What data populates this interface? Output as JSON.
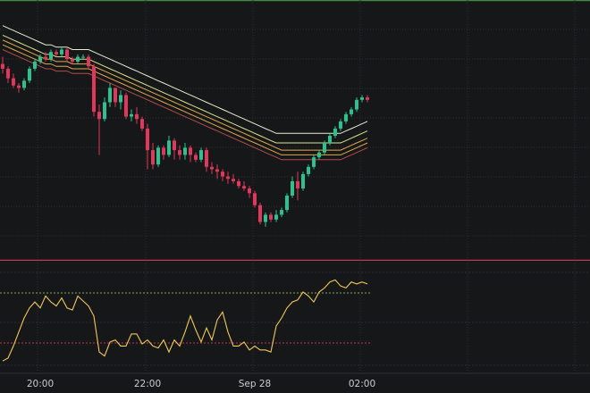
{
  "chart_data": {
    "type": "candlestick",
    "xlabel": "",
    "ylabel": "",
    "x_ticks": [
      {
        "label": "20:00",
        "bar": 5
      },
      {
        "label": "22:00",
        "bar": 25
      },
      {
        "label": "Sep 28",
        "bar": 45
      },
      {
        "label": "02:00",
        "bar": 65
      }
    ],
    "ylim": [
      0,
      100
    ],
    "candles": [
      [
        80,
        83,
        76,
        78
      ],
      [
        78,
        79,
        72,
        74
      ],
      [
        74,
        76,
        70,
        71
      ],
      [
        71,
        72,
        68,
        70
      ],
      [
        70,
        74,
        69,
        73
      ],
      [
        73,
        79,
        72,
        78
      ],
      [
        78,
        82,
        77,
        81
      ],
      [
        81,
        84,
        80,
        83
      ],
      [
        83,
        85,
        81,
        82
      ],
      [
        82,
        86,
        81,
        85
      ],
      [
        85,
        86,
        83,
        84
      ],
      [
        84,
        87,
        83,
        86
      ],
      [
        86,
        87,
        81,
        82
      ],
      [
        82,
        83,
        80,
        81
      ],
      [
        81,
        84,
        80,
        83
      ],
      [
        83,
        84,
        82,
        83
      ],
      [
        83,
        84,
        78,
        79
      ],
      [
        79,
        80,
        58,
        60
      ],
      [
        60,
        63,
        42,
        57
      ],
      [
        57,
        66,
        56,
        64
      ],
      [
        64,
        72,
        62,
        70
      ],
      [
        70,
        70,
        62,
        64
      ],
      [
        64,
        69,
        61,
        67
      ],
      [
        67,
        68,
        57,
        58
      ],
      [
        58,
        61,
        56,
        59
      ],
      [
        59,
        62,
        55,
        57
      ],
      [
        57,
        58,
        52,
        53
      ],
      [
        53,
        55,
        36,
        44
      ],
      [
        44,
        47,
        36,
        38
      ],
      [
        38,
        46,
        37,
        45
      ],
      [
        45,
        46,
        40,
        42
      ],
      [
        42,
        50,
        41,
        48
      ],
      [
        48,
        49,
        40,
        44
      ],
      [
        44,
        46,
        40,
        42
      ],
      [
        42,
        47,
        40,
        45
      ],
      [
        45,
        46,
        39,
        42
      ],
      [
        42,
        43,
        39,
        40
      ],
      [
        40,
        45,
        39,
        44
      ],
      [
        44,
        45,
        35,
        37
      ],
      [
        37,
        39,
        34,
        36
      ],
      [
        36,
        38,
        32,
        35
      ],
      [
        35,
        36,
        31,
        33
      ],
      [
        33,
        35,
        30,
        32
      ],
      [
        32,
        34,
        30,
        31
      ],
      [
        31,
        32,
        28,
        29
      ],
      [
        29,
        31,
        27,
        28
      ],
      [
        28,
        29,
        24,
        26
      ],
      [
        26,
        27,
        20,
        21
      ],
      [
        21,
        22,
        13,
        14
      ],
      [
        14,
        18,
        12,
        17
      ],
      [
        17,
        18,
        14,
        15
      ],
      [
        15,
        19,
        14,
        17
      ],
      [
        17,
        20,
        16,
        19
      ],
      [
        19,
        26,
        18,
        25
      ],
      [
        25,
        33,
        24,
        31
      ],
      [
        31,
        35,
        23,
        28
      ],
      [
        28,
        35,
        27,
        34
      ],
      [
        34,
        38,
        33,
        37
      ],
      [
        37,
        42,
        36,
        41
      ],
      [
        41,
        44,
        40,
        43
      ],
      [
        43,
        48,
        42,
        47
      ],
      [
        47,
        51,
        46,
        50
      ],
      [
        50,
        54,
        49,
        53
      ],
      [
        53,
        57,
        52,
        56
      ],
      [
        56,
        60,
        55,
        59
      ],
      [
        59,
        62,
        58,
        61
      ],
      [
        61,
        66,
        60,
        65
      ],
      [
        65,
        67,
        64,
        66
      ],
      [
        66,
        67,
        64,
        65
      ]
    ],
    "bands": [
      {
        "name": "",
        "color": "#e4efcf",
        "values": [
          96,
          95,
          94,
          93,
          92,
          91,
          90,
          89,
          88,
          88,
          87,
          87,
          87,
          86,
          86,
          86,
          86,
          85,
          84,
          83,
          82,
          81,
          80,
          79,
          78,
          77,
          76,
          75,
          74,
          73,
          72,
          71,
          70,
          69,
          68,
          67,
          66,
          65,
          64,
          63,
          62,
          61,
          60,
          59,
          58,
          57,
          56,
          55,
          54,
          53,
          52,
          51,
          51,
          51,
          51,
          51,
          51,
          51,
          51,
          51,
          51,
          51,
          51,
          51,
          52,
          53,
          54,
          55,
          56
        ]
      },
      {
        "name": "",
        "color": "#d7e58e",
        "values": [
          92,
          91,
          90,
          89,
          88,
          87,
          86,
          85,
          84,
          84,
          83,
          83,
          83,
          82,
          82,
          82,
          82,
          81,
          80,
          79,
          78,
          77,
          76,
          75,
          74,
          73,
          72,
          71,
          70,
          69,
          68,
          67,
          66,
          65,
          64,
          63,
          62,
          61,
          60,
          59,
          58,
          57,
          56,
          55,
          54,
          53,
          52,
          51,
          50,
          49,
          48,
          47,
          47,
          47,
          47,
          47,
          47,
          47,
          47,
          47,
          47,
          47,
          47,
          47,
          48,
          49,
          50,
          51,
          52
        ]
      },
      {
        "name": "",
        "color": "#e0a94e",
        "values": [
          90,
          89,
          88,
          87,
          86,
          85,
          84,
          83,
          82,
          82,
          81,
          81,
          81,
          80,
          80,
          80,
          80,
          79,
          78,
          77,
          76,
          75,
          74,
          73,
          72,
          71,
          70,
          69,
          68,
          67,
          66,
          65,
          64,
          63,
          62,
          61,
          60,
          59,
          58,
          57,
          56,
          55,
          54,
          53,
          52,
          51,
          50,
          49,
          48,
          47,
          46,
          45,
          44,
          44,
          44,
          44,
          44,
          44,
          44,
          44,
          44,
          44,
          44,
          44,
          45,
          46,
          47,
          48,
          49
        ]
      },
      {
        "name": "",
        "color": "#e0a94e",
        "values": [
          88,
          87,
          86,
          85,
          84,
          83,
          82,
          81,
          80,
          80,
          79,
          79,
          79,
          78,
          78,
          78,
          78,
          77,
          76,
          75,
          74,
          73,
          72,
          71,
          70,
          69,
          68,
          67,
          66,
          65,
          64,
          63,
          62,
          61,
          60,
          59,
          58,
          57,
          56,
          55,
          54,
          53,
          52,
          51,
          50,
          49,
          48,
          47,
          46,
          45,
          44,
          43,
          42,
          42,
          42,
          42,
          42,
          42,
          42,
          42,
          42,
          42,
          42,
          42,
          43,
          44,
          45,
          46,
          47
        ]
      },
      {
        "name": "",
        "color": "#b54a4a",
        "values": [
          86,
          85,
          84,
          83,
          82,
          81,
          80,
          79,
          78,
          78,
          77,
          77,
          77,
          76,
          76,
          76,
          76,
          75,
          74,
          73,
          72,
          71,
          70,
          69,
          68,
          67,
          66,
          65,
          64,
          63,
          62,
          61,
          60,
          59,
          58,
          57,
          56,
          55,
          54,
          53,
          52,
          51,
          50,
          49,
          48,
          47,
          46,
          45,
          44,
          43,
          42,
          41,
          40,
          40,
          40,
          40,
          40,
          40,
          40,
          40,
          40,
          40,
          40,
          40,
          41,
          42,
          43,
          44,
          45
        ]
      }
    ],
    "horizontal_line": {
      "value": -2,
      "color": "#c03a53"
    },
    "oscillator": {
      "type": "line",
      "color": "#f0c75a",
      "ylim": [
        0,
        100
      ],
      "levels": [
        {
          "value": 75,
          "color": "#8aa84a",
          "style": "dotted"
        },
        {
          "value": 25,
          "color": "#c0394e",
          "style": "dotted"
        }
      ],
      "values": [
        7,
        10,
        22,
        36,
        50,
        60,
        66,
        60,
        72,
        66,
        62,
        70,
        60,
        58,
        72,
        67,
        62,
        52,
        16,
        12,
        26,
        28,
        22,
        22,
        34,
        34,
        24,
        28,
        22,
        20,
        28,
        16,
        28,
        22,
        36,
        52,
        38,
        26,
        40,
        28,
        48,
        56,
        36,
        22,
        22,
        26,
        18,
        22,
        18,
        18,
        16,
        42,
        50,
        60,
        66,
        68,
        76,
        72,
        66,
        76,
        80,
        86,
        88,
        82,
        80,
        86,
        84,
        86,
        84
      ]
    },
    "colors": {
      "background": "#161719",
      "up": "#2cc28f",
      "down": "#e0375b",
      "grid": "#2c2f34",
      "top_border": "#3f8f3a"
    }
  }
}
